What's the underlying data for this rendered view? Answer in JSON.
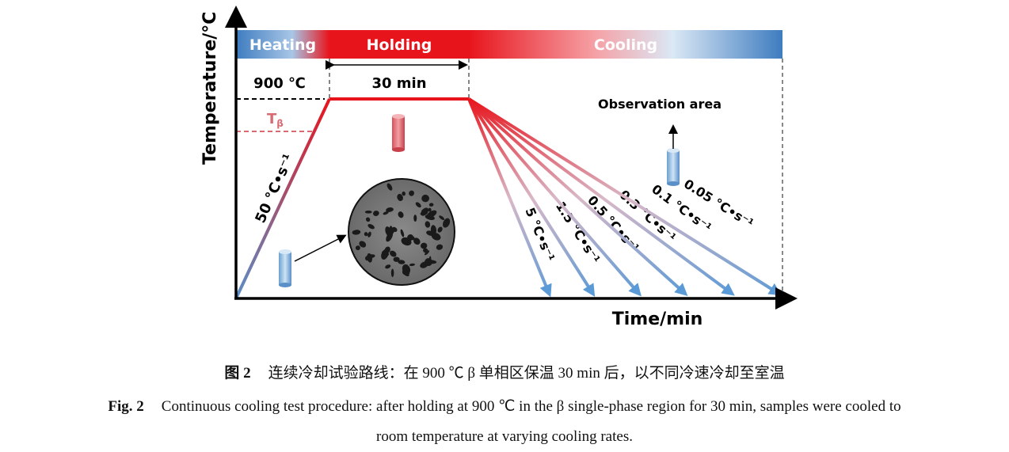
{
  "figure": {
    "y_axis_label": "Temperature/°C",
    "x_axis_label": "Time/min",
    "stages": [
      {
        "label": "Heating"
      },
      {
        "label": "Holding"
      },
      {
        "label": "Cooling"
      }
    ],
    "temperature_label": "900 ℃",
    "beta_transus_label": "Tβ",
    "holding_time_label": "30 min",
    "heating_rate_label": "50 °C•s⁻¹",
    "observation_label": "Observation area",
    "cooling_rates": [
      "5 °C•s⁻¹",
      "1.5 °C•s⁻¹",
      "0.5 °C•s⁻¹",
      "0.3 °C•s⁻¹",
      "0.1 °C•s⁻¹",
      "0.05 °C•s⁻¹"
    ],
    "colors": {
      "hot": "#e8141c",
      "cold": "#3e7cc0",
      "axis": "#000000"
    }
  },
  "caption": {
    "cn_label": "图 2",
    "cn_text": "连续冷却试验路线：在 900 ℃ β 单相区保温 30 min 后，以不同冷速冷却至室温",
    "en_label": "Fig. 2",
    "en_text_line1": "Continuous cooling test procedure: after holding at 900 ℃ in the β single-phase region for 30 min, samples were cooled to",
    "en_text_line2": "room temperature at varying cooling rates."
  }
}
